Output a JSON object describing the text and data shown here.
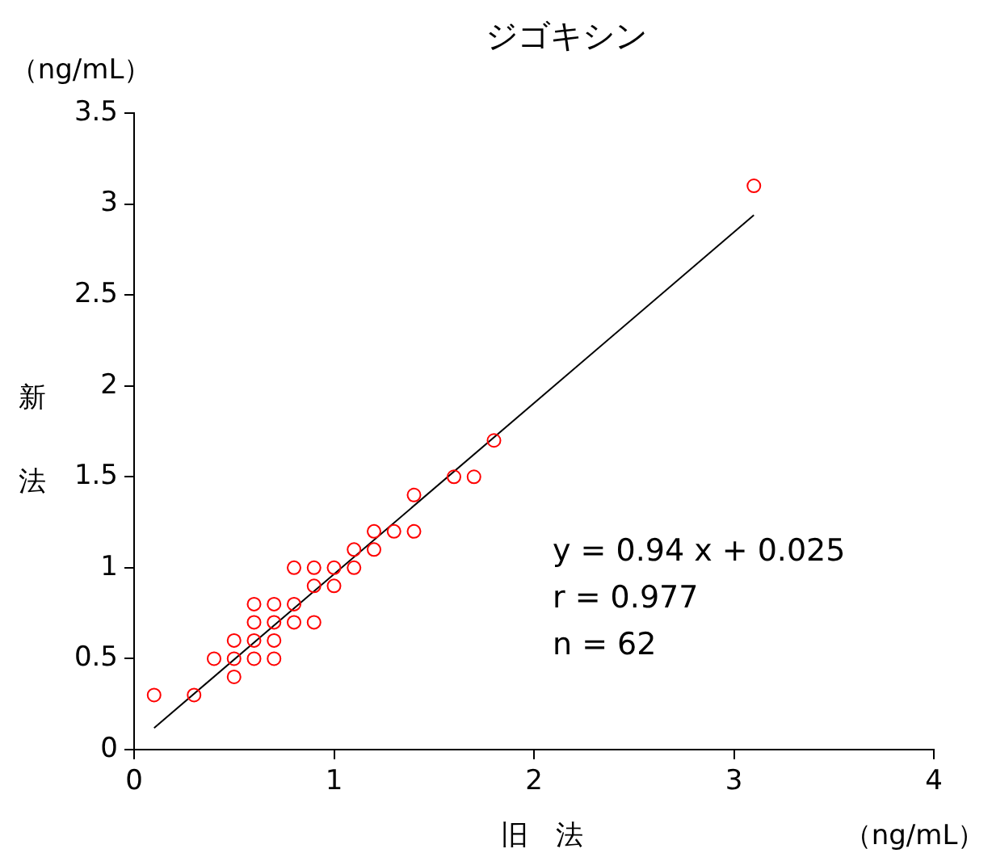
{
  "chart_data": {
    "type": "scatter",
    "title": "ジゴキシン",
    "xlabel": "旧　法",
    "ylabel": "新法",
    "annotations": [
      "（ng/mL）",
      "（ng/mL）",
      "y = 0.94 x + 0.025",
      "r = 0.977",
      "n = 62"
    ],
    "xlim": [
      0,
      4
    ],
    "xticks": [
      0,
      1,
      2,
      3,
      4
    ],
    "ylim": [
      0,
      3.5
    ],
    "yticks": [
      0,
      0.5,
      1,
      1.5,
      2,
      2.5,
      3,
      3.5
    ],
    "grid": false,
    "legend": false,
    "marker": "circle",
    "series": [
      {
        "color": "#ff0000",
        "x": [
          0.1,
          0.3,
          0.4,
          0.5,
          0.5,
          0.5,
          0.6,
          0.6,
          0.6,
          0.6,
          0.7,
          0.7,
          0.7,
          0.7,
          0.8,
          0.8,
          0.8,
          0.9,
          0.9,
          0.9,
          1.0,
          1.0,
          1.1,
          1.1,
          1.2,
          1.2,
          1.3,
          1.4,
          1.4,
          1.6,
          1.7,
          1.8,
          3.1
        ],
        "values": [
          0.3,
          0.3,
          0.5,
          0.4,
          0.5,
          0.6,
          0.5,
          0.6,
          0.7,
          0.8,
          0.5,
          0.6,
          0.7,
          0.8,
          0.7,
          0.8,
          1.0,
          0.7,
          0.9,
          1.0,
          0.9,
          1.0,
          1.0,
          1.1,
          1.1,
          1.2,
          1.2,
          1.2,
          1.4,
          1.5,
          1.5,
          1.7,
          3.1
        ]
      },
      {
        "type": "line",
        "color": "#000000",
        "marker": "none",
        "x": [
          0.1,
          3.1
        ],
        "values": [
          0.119,
          2.939
        ]
      }
    ]
  }
}
